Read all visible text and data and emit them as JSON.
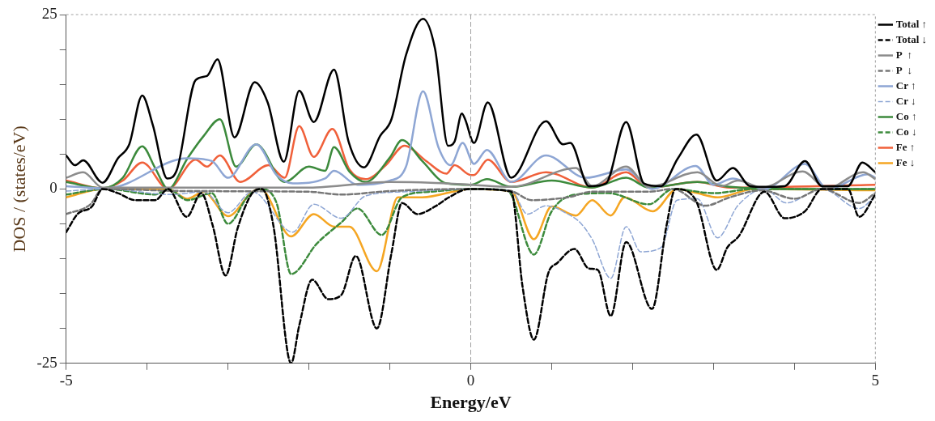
{
  "chart_data": {
    "type": "line",
    "xlabel": "Energy/eV",
    "ylabel": "DOS / (states/eV)",
    "xlim": [
      -5,
      5
    ],
    "ylim": [
      -25,
      25
    ],
    "xticks": [
      -5,
      {
        "value": -4,
        "label": null
      },
      {
        "value": -3,
        "label": null
      },
      {
        "value": -2,
        "label": null
      },
      {
        "value": -1,
        "label": null
      },
      0,
      {
        "value": 1,
        "label": null
      },
      {
        "value": 2,
        "label": null
      },
      {
        "value": 3,
        "label": null
      },
      {
        "value": 4,
        "label": null
      },
      5
    ],
    "yticks": [
      -25,
      {
        "value": -20,
        "label": null
      },
      {
        "value": -15,
        "label": null
      },
      {
        "value": -10,
        "label": null
      },
      {
        "value": -5,
        "label": null
      },
      0,
      {
        "value": 5,
        "label": null
      },
      {
        "value": 10,
        "label": null
      },
      {
        "value": 15,
        "label": null
      },
      {
        "value": 20,
        "label": null
      },
      25
    ],
    "grid": false,
    "legend": "right",
    "marker": "none",
    "ref_lines": [
      {
        "axis": "x",
        "value": 0,
        "color": "#a0a0a0",
        "line_style": "dashed"
      }
    ],
    "series": [
      {
        "name": "Total ↑",
        "color": "#000000",
        "line_style": "solid",
        "x": [
          -5,
          -4.89,
          -4.79,
          -4.55,
          -4.36,
          -4.22,
          -4.06,
          -3.93,
          -3.75,
          -3.63,
          -3.4,
          -3.26,
          -3.13,
          -2.92,
          -2.67,
          -2.51,
          -2.31,
          -2.12,
          -1.94,
          -1.69,
          -1.51,
          -1.32,
          -1.12,
          -0.98,
          -0.8,
          -0.59,
          -0.44,
          -0.28,
          -0.2,
          -0.11,
          -0.07,
          0.04,
          0.21,
          0.5,
          0.93,
          1.14,
          1.23,
          1.46,
          1.67,
          1.92,
          2.14,
          2.35,
          2.56,
          2.79,
          3.04,
          3.24,
          3.45,
          3.63,
          3.88,
          4.13,
          4.34,
          4.66,
          4.84,
          5
        ],
        "values": [
          4.8,
          3.4,
          4.1,
          0.9,
          4.4,
          6.4,
          13.4,
          9.2,
          1.5,
          2.8,
          15.6,
          16.2,
          18.6,
          7.4,
          15.3,
          12.4,
          3.9,
          14.1,
          9.6,
          17.1,
          6.8,
          3.1,
          7.6,
          10,
          19.2,
          24.4,
          20,
          6.2,
          6.8,
          10.8,
          10,
          6.6,
          12.4,
          1.6,
          9.7,
          6.4,
          6.6,
          0.4,
          0.8,
          9.6,
          0.8,
          0.4,
          4.4,
          7.8,
          1.2,
          3,
          0.4,
          0.3,
          0.4,
          4,
          0.4,
          0.4,
          3.8,
          2.4
        ]
      },
      {
        "name": "Total ↓",
        "color": "#000000",
        "line_style": "dashed",
        "x": [
          -5,
          -4.86,
          -4.68,
          -4.55,
          -4.36,
          -4.15,
          -3.9,
          -3.74,
          -3.51,
          -3.33,
          -3.19,
          -3.03,
          -2.88,
          -2.7,
          -2.58,
          -2.44,
          -2.22,
          -2.12,
          -1.96,
          -1.76,
          -1.6,
          -1.42,
          -1.16,
          -0.98,
          -0.85,
          -0.66,
          -0.44,
          -0.27,
          -0.02,
          0.5,
          0.64,
          0.78,
          0.96,
          1.07,
          1.28,
          1.46,
          1.57,
          1.73,
          1.92,
          2.24,
          2.42,
          2.53,
          2.78,
          3.04,
          3.17,
          3.31,
          3.63,
          3.88,
          4.13,
          4.34,
          4.66,
          4.8,
          5
        ],
        "values": [
          -6.2,
          -3.6,
          -2.5,
          0,
          -0.6,
          -1.6,
          -1.6,
          0,
          -4,
          -0.6,
          -5.2,
          -12.4,
          -5.6,
          -0.6,
          0,
          -5.2,
          -25,
          -19.6,
          -13,
          -15.8,
          -15.2,
          -9.6,
          -20,
          -9.2,
          -2,
          -3.6,
          -2.5,
          -1.2,
          0,
          -0.4,
          -14,
          -21.6,
          -12,
          -10.6,
          -8.6,
          -11.4,
          -11.6,
          -18.2,
          -7.6,
          -17.2,
          -5.2,
          0,
          -1.6,
          -11.6,
          -8.4,
          -6.8,
          -0.4,
          -4.2,
          -3.2,
          0,
          0,
          -4,
          -0.8
        ]
      },
      {
        "name": "P  ↑",
        "color": "#8c8c8c",
        "line_style": "solid",
        "x": [
          -5,
          -4.79,
          -4.55,
          -3,
          -2,
          -1,
          -0.5,
          0,
          0.5,
          1.3,
          1.5,
          1.92,
          2.2,
          2.8,
          3.1,
          3.3,
          3.6,
          4.1,
          4.4,
          4.85,
          5
        ],
        "values": [
          1.6,
          2.4,
          0.2,
          0.2,
          0.2,
          1,
          0.9,
          0.6,
          0.3,
          3,
          0.4,
          3.2,
          0.3,
          2.4,
          0.4,
          1.2,
          0.2,
          2.5,
          0.1,
          2.4,
          1.4
        ]
      },
      {
        "name": "P  ↓",
        "color": "#777777",
        "line_style": "dashed",
        "x": [
          -5,
          -4.7,
          -4.55,
          -3.5,
          -2,
          -1.6,
          -1,
          0,
          0.5,
          0.75,
          1.2,
          1.5,
          2.2,
          2.5,
          2.9,
          3.2,
          3.6,
          4,
          4.34,
          4.8,
          5
        ],
        "values": [
          -3.6,
          -2.2,
          0,
          -0.3,
          -0.4,
          -0.8,
          -0.3,
          0,
          -0.3,
          -1.6,
          -1.2,
          -0.4,
          -0.4,
          0,
          -2.4,
          -1.2,
          -0.2,
          -1.4,
          0,
          -2,
          -0.6
        ]
      },
      {
        "name": "Cr ↑",
        "color": "#8ea6d4",
        "line_style": "solid",
        "x": [
          -5,
          -4.5,
          -3.5,
          -3.2,
          -3,
          -2.65,
          -2.4,
          -2.2,
          -1.8,
          -1.69,
          -1.4,
          -1,
          -0.8,
          -0.59,
          -0.4,
          -0.25,
          -0.1,
          0.04,
          0.2,
          0.5,
          0.93,
          1.42,
          1.92,
          2.24,
          2.78,
          3,
          3.24,
          3.63,
          4.13,
          4.41,
          4.91,
          5
        ],
        "values": [
          0.4,
          0.1,
          4.4,
          4,
          1.6,
          6.4,
          2,
          0.8,
          1.5,
          2.6,
          0.6,
          1.2,
          3.2,
          14,
          6,
          3.4,
          6.6,
          3.6,
          5.6,
          1,
          4.8,
          1.6,
          2.8,
          0,
          3.3,
          0.6,
          1.5,
          0,
          3.6,
          0,
          2.1,
          1.6
        ]
      },
      {
        "name": "Cr ↓",
        "color": "#8ea6d4",
        "line_style": "dashed",
        "x": [
          -5,
          -4.5,
          -3.7,
          -3.3,
          -3,
          -2.7,
          -2.2,
          -1.94,
          -1.6,
          -1.3,
          -0.8,
          0,
          0.5,
          0.7,
          0.93,
          1.2,
          1.35,
          1.5,
          1.73,
          1.92,
          2.1,
          2.35,
          2.55,
          2.8,
          3.05,
          3.3,
          3.63,
          3.9,
          4.34,
          4.8,
          5
        ],
        "values": [
          -0.3,
          0,
          -0.8,
          -0.4,
          -3.4,
          -0.4,
          -6.2,
          -2.2,
          -4.2,
          -1,
          -0.4,
          0,
          -0.2,
          -3.6,
          -2.4,
          -3.6,
          -4.8,
          -7.2,
          -12.8,
          -5.4,
          -9,
          -8.4,
          -1.6,
          -1.4,
          -7,
          -2.4,
          0,
          -2,
          0,
          -2.8,
          -1
        ]
      },
      {
        "name": "Co ↑",
        "color": "#3c8a3c",
        "line_style": "solid",
        "x": [
          -5,
          -4.55,
          -4.3,
          -4.06,
          -3.9,
          -3.74,
          -3.5,
          -3.3,
          -3.1,
          -2.9,
          -2.65,
          -2.3,
          -2,
          -1.8,
          -1.69,
          -1.5,
          -1.3,
          -1,
          -0.85,
          -0.6,
          -0.3,
          0,
          0.2,
          0.5,
          1,
          1.5,
          1.92,
          2.2,
          2.8,
          3.2,
          4,
          5
        ],
        "values": [
          1,
          0.1,
          1.6,
          6.1,
          3,
          0,
          4.4,
          7.6,
          10,
          3.2,
          6.4,
          1,
          3.2,
          2.6,
          6,
          2.5,
          1,
          4.5,
          7,
          4,
          0.8,
          0.6,
          1.4,
          0.3,
          1.2,
          0.2,
          1.6,
          0.2,
          1,
          0.3,
          0,
          0
        ]
      },
      {
        "name": "Co ↓",
        "color": "#3c8a3c",
        "line_style": "dashed",
        "x": [
          -5,
          -4.5,
          -3.9,
          -3.74,
          -3.5,
          -3.2,
          -3,
          -2.75,
          -2.6,
          -2.4,
          -2.22,
          -1.9,
          -1.6,
          -1.4,
          -1.1,
          -0.85,
          -0.5,
          0,
          0.45,
          0.78,
          1,
          1.3,
          1.7,
          2.2,
          2.5,
          3,
          3.5,
          5
        ],
        "values": [
          -0.8,
          0,
          -0.8,
          0,
          -1.6,
          -0.6,
          -5,
          -1,
          0,
          -2,
          -12.2,
          -7.8,
          -4.8,
          -2.8,
          -6.6,
          -1.2,
          -0.4,
          0,
          -0.2,
          -9.4,
          -3.2,
          -0.8,
          -0.6,
          -2.2,
          0,
          -0.6,
          0,
          0
        ]
      },
      {
        "name": "Fe ↑",
        "color": "#f0603a",
        "line_style": "solid",
        "x": [
          -5,
          -4.55,
          -4.3,
          -4.06,
          -3.74,
          -3.4,
          -3.26,
          -3.1,
          -2.85,
          -2.5,
          -2.3,
          -2.12,
          -1.94,
          -1.71,
          -1.5,
          -1.3,
          -1.05,
          -0.82,
          -0.55,
          -0.3,
          -0.2,
          0,
          0.04,
          0.21,
          0.5,
          0.93,
          1.5,
          1.92,
          2.2,
          2.8,
          3.2,
          5
        ],
        "values": [
          1.2,
          0.1,
          1.2,
          3.8,
          0,
          4.2,
          3.2,
          4.8,
          1,
          3.4,
          1.6,
          9,
          4.6,
          8.6,
          2.8,
          1.4,
          3.4,
          6.2,
          4,
          2.2,
          3.4,
          2,
          2,
          4.2,
          1,
          2.4,
          0.2,
          2.4,
          0.2,
          1,
          0.2,
          0.6
        ]
      },
      {
        "name": "Fe ↓",
        "color": "#f5a623",
        "line_style": "solid",
        "x": [
          -5,
          -4.55,
          -3.74,
          -3.5,
          -3.3,
          -3,
          -2.7,
          -2.6,
          -2.22,
          -1.94,
          -1.69,
          -1.5,
          -1.16,
          -0.9,
          -0.6,
          0,
          0.5,
          0.78,
          1,
          1.3,
          1.5,
          1.73,
          1.9,
          2.25,
          2.55,
          2.8,
          3.05,
          3.5,
          5
        ],
        "values": [
          -1.2,
          0,
          0,
          -1.4,
          -0.4,
          -3.9,
          -0.4,
          0,
          -6.8,
          -3.6,
          -5.4,
          -5.4,
          -11.8,
          -1.2,
          -1.2,
          0,
          -0.3,
          -7.2,
          -2.5,
          -3.8,
          -1.6,
          -3.8,
          -1.2,
          -3.2,
          0,
          -0.6,
          -1.2,
          0,
          -0.2
        ]
      }
    ]
  }
}
